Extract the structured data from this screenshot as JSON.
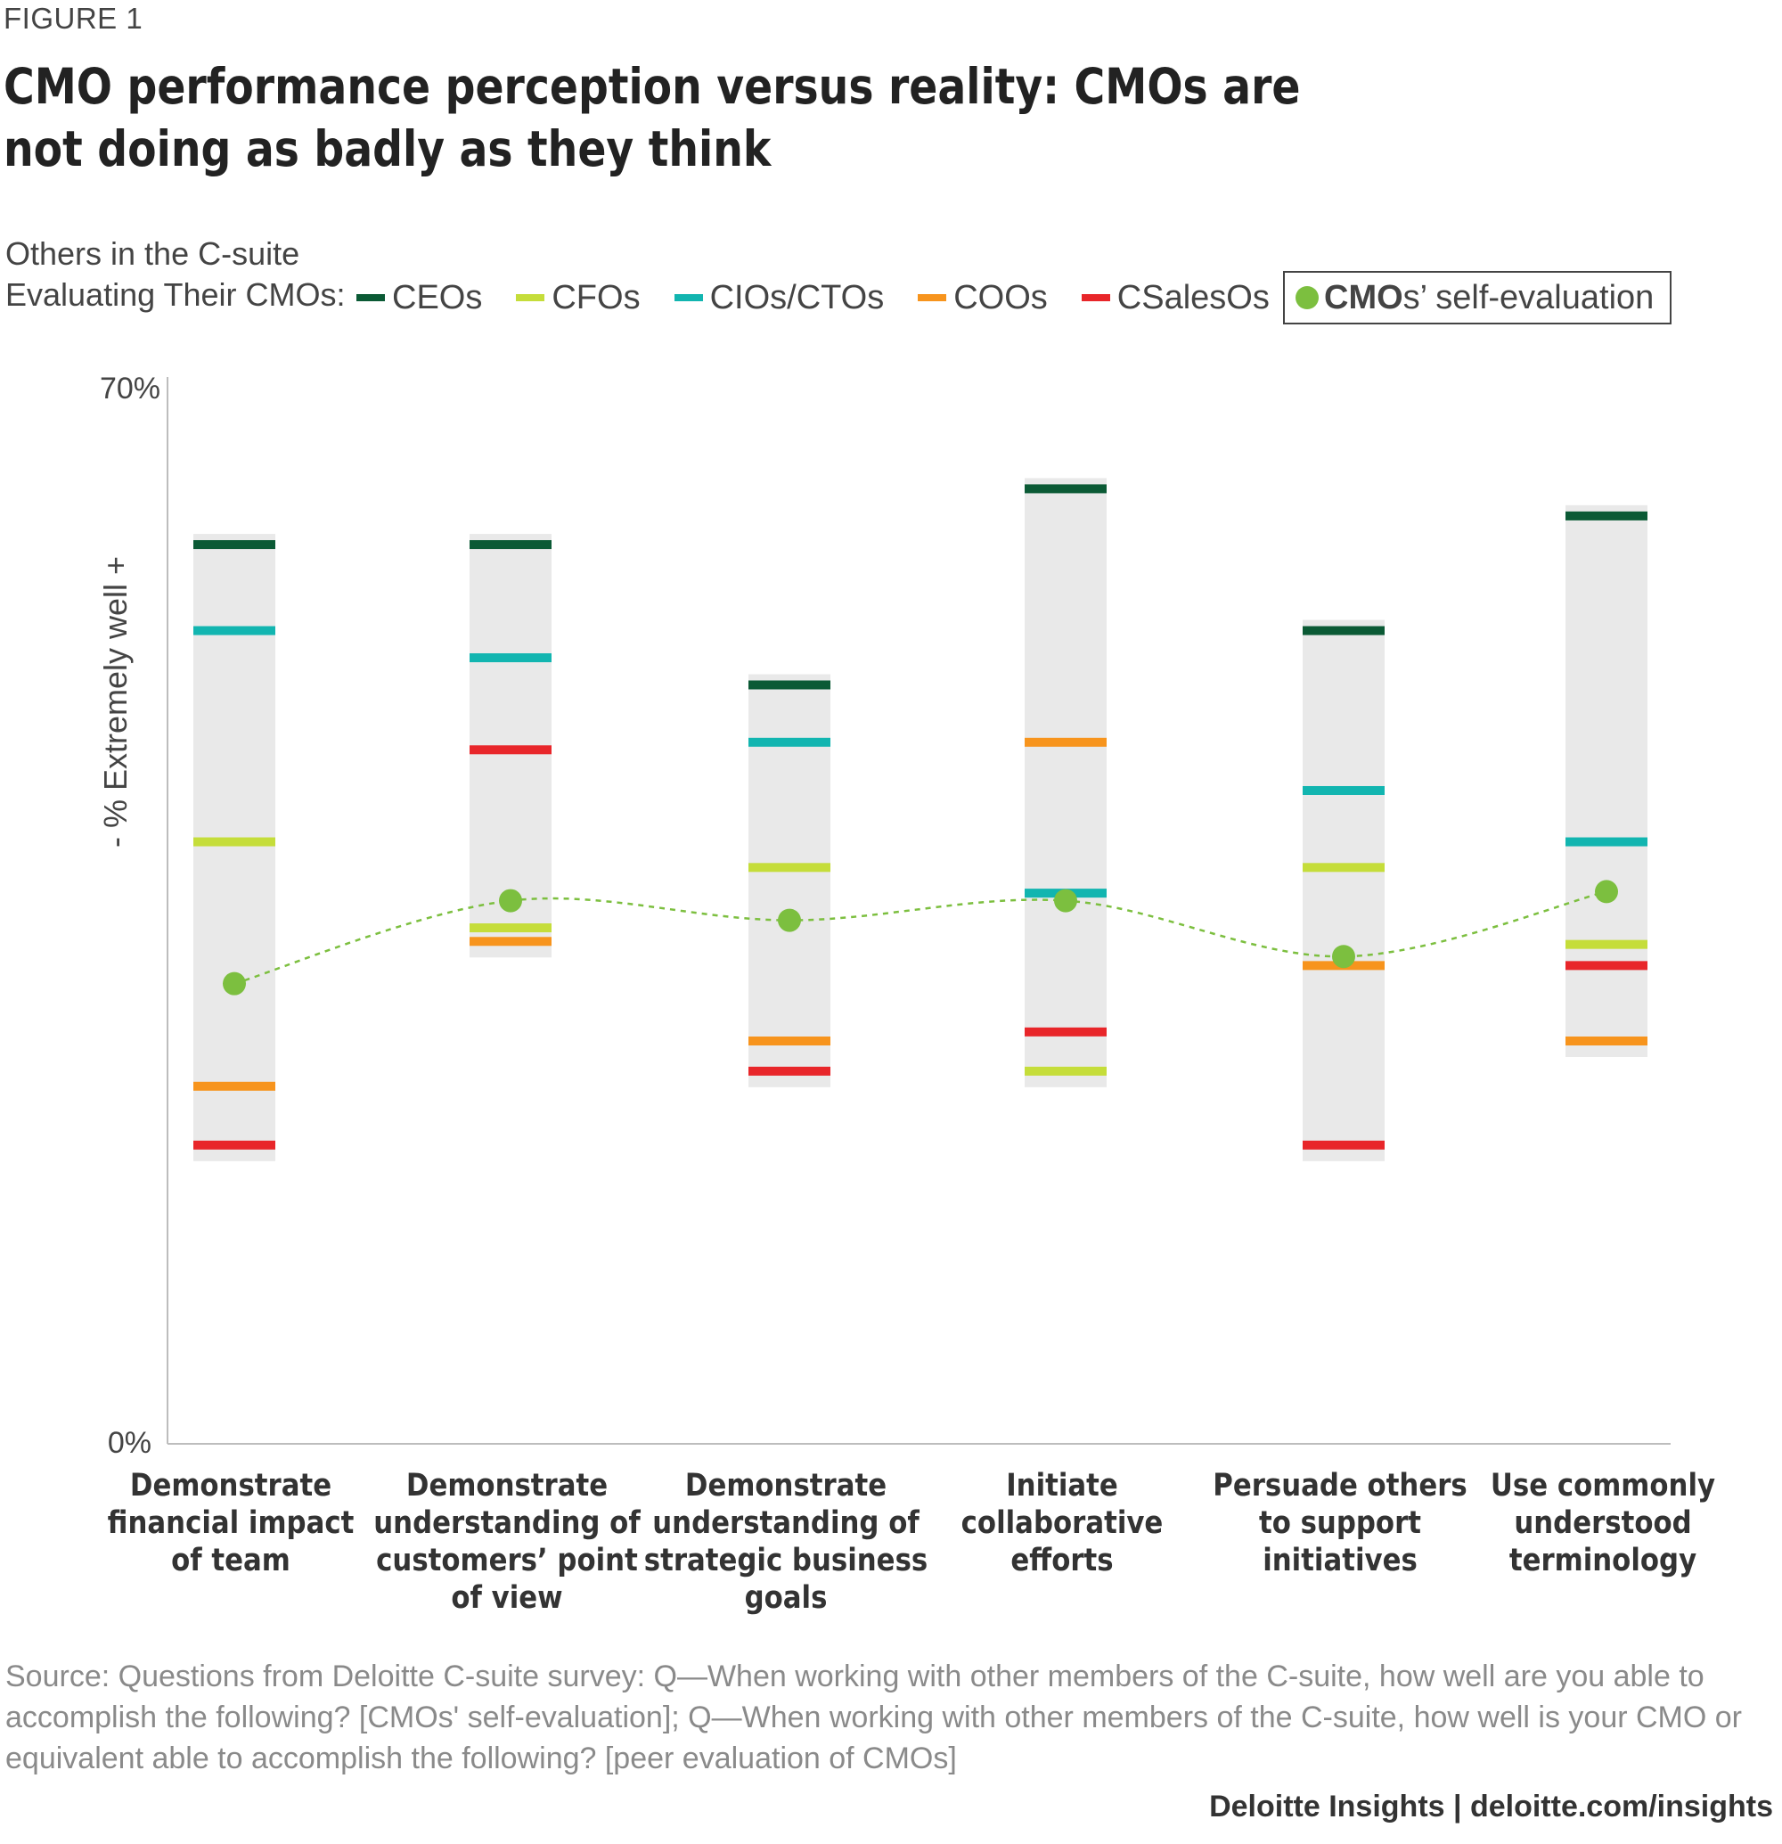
{
  "figure_label": "FIGURE 1",
  "title": "CMO performance perception versus reality: CMOs are not doing as badly as they think",
  "legend": {
    "intro_line1": "Others in the C-suite",
    "intro_line2": "Evaluating Their CMOs:",
    "items": [
      {
        "label": "CEOs",
        "color": "#0b5a35"
      },
      {
        "label": "CFOs",
        "color": "#c5dd3a"
      },
      {
        "label": "CIOs/CTOs",
        "color": "#12b5b0"
      },
      {
        "label": "COOs",
        "color": "#f7941d"
      },
      {
        "label": "CSalesOs",
        "color": "#e8262a"
      }
    ],
    "self_eval": {
      "bold": "CMO",
      "rest": "s’ self-evaluation",
      "color": "#7cbf3f"
    }
  },
  "chart_data": {
    "type": "scatter",
    "ylabel": "- % Extremely well +",
    "ylim": [
      0,
      70
    ],
    "y_tick_labels": [
      "0%",
      "70%"
    ],
    "categories": [
      "Demonstrate financial impact of team",
      "Demonstrate understanding of customers’ point of view",
      "Demonstrate understanding of strategic business goals",
      "Initiate collaborative efforts",
      "Persuade others to support initiatives",
      "Use commonly understood terminology"
    ],
    "category_lines": [
      [
        "Demonstrate",
        "financial impact",
        "of team"
      ],
      [
        "Demonstrate",
        "understanding of",
        "customers’ point",
        "of view"
      ],
      [
        "Demonstrate",
        "understanding of",
        "strategic business",
        "goals"
      ],
      [
        "Initiate",
        "collaborative",
        "efforts"
      ],
      [
        "Persuade others",
        "to support",
        "initiatives"
      ],
      [
        "Use commonly",
        "understood",
        "terminology"
      ]
    ],
    "series": [
      {
        "name": "CEOs",
        "color": "#0b5a35",
        "values": [
          59.6,
          59.6,
          50.3,
          63.3,
          53.9,
          61.5
        ]
      },
      {
        "name": "CFOs",
        "color": "#c5dd3a",
        "values": [
          39.9,
          34.2,
          38.2,
          24.7,
          38.2,
          33.1
        ]
      },
      {
        "name": "CIOs/CTOs",
        "color": "#12b5b0",
        "values": [
          53.9,
          52.1,
          46.5,
          36.5,
          43.3,
          39.9
        ]
      },
      {
        "name": "COOs",
        "color": "#f7941d",
        "values": [
          23.7,
          33.3,
          26.7,
          46.5,
          31.7,
          26.7
        ]
      },
      {
        "name": "CSalesOs",
        "color": "#e8262a",
        "values": [
          19.8,
          46.0,
          24.7,
          27.3,
          19.8,
          31.7
        ]
      }
    ],
    "self_evaluation": {
      "name": "CMOs’ self-evaluation",
      "color": "#7cbf3f",
      "values": [
        30.5,
        36.0,
        34.7,
        36.0,
        32.3,
        36.6
      ]
    }
  },
  "source": "Source: Questions from Deloitte C-suite survey: Q—When working with other members of the C-suite, how well are you able to accomplish the following? [CMOs' self-evaluation]; Q—When working with other members of the C-suite, how well is your CMO or equivalent able to accomplish the following? [peer evaluation of CMOs]",
  "footer": "Deloitte Insights | deloitte.com/insights"
}
